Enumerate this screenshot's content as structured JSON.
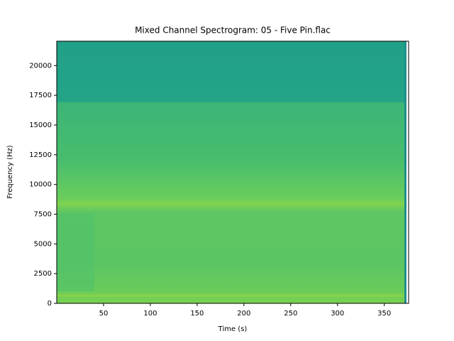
{
  "chart_data": {
    "type": "spectrogram",
    "title": "Mixed Channel Spectrogram: 05 - Five Pin.flac",
    "x_label": "Time (s)",
    "y_label": "Frequency (Hz)",
    "xlim": [
      0,
      376
    ],
    "ylim": [
      0,
      22050
    ],
    "xticks": [
      50,
      100,
      150,
      200,
      250,
      300,
      350
    ],
    "yticks": [
      0,
      2500,
      5000,
      7500,
      10000,
      12500,
      15000,
      17500,
      20000
    ]
  }
}
